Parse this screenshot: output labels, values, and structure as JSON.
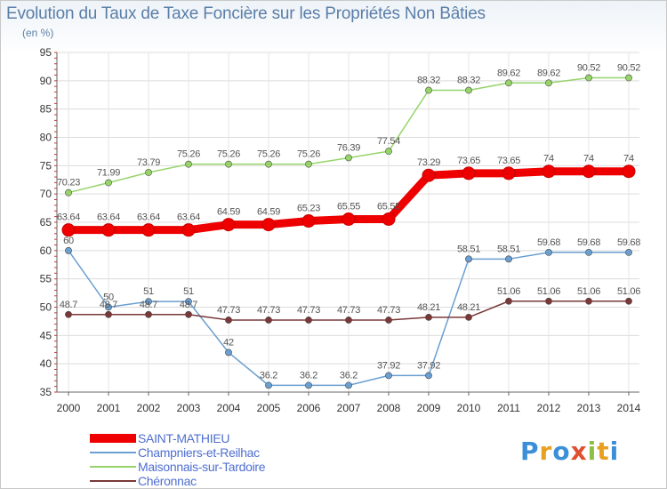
{
  "chart_data": {
    "type": "line",
    "title": "Evolution du Taux de Taxe Foncière sur les Propriétés Non Bâties",
    "subtitle": "(en %)",
    "x": [
      "2000",
      "2001",
      "2002",
      "2003",
      "2004",
      "2005",
      "2006",
      "2007",
      "2008",
      "2009",
      "2010",
      "2011",
      "2012",
      "2013",
      "2014"
    ],
    "ylim": [
      35,
      95
    ],
    "yticks": [
      35,
      40,
      45,
      50,
      55,
      60,
      65,
      70,
      75,
      80,
      85,
      90,
      95
    ],
    "grid": true,
    "series": [
      {
        "name": "SAINT-MATHIEU",
        "color": "#ee0000",
        "values": [
          63.64,
          63.64,
          63.64,
          63.64,
          64.59,
          64.59,
          65.23,
          65.55,
          65.55,
          73.29,
          73.65,
          73.65,
          74,
          74,
          74
        ],
        "labels": [
          "63.64",
          "63.64",
          "63.64",
          "63.64",
          "64.59",
          "64.59",
          "65.23",
          "65.55",
          "65.55",
          "73.29",
          "73.65",
          "73.65",
          "74",
          "74",
          "74"
        ]
      },
      {
        "name": "Champniers-et-Reilhac",
        "color": "#6a9fd0",
        "values": [
          60,
          50,
          51,
          51,
          42,
          36.2,
          36.2,
          36.2,
          37.92,
          37.92,
          58.51,
          58.51,
          59.68,
          59.68,
          59.68
        ],
        "labels": [
          "60",
          "50",
          "51",
          "51",
          "42",
          "36.2",
          "36.2",
          "36.2",
          "37.92",
          "37.92",
          "58.51",
          "58.51",
          "59.68",
          "59.68",
          "59.68"
        ]
      },
      {
        "name": "Maisonnais-sur-Tardoire",
        "color": "#96d46a",
        "values": [
          70.23,
          71.99,
          73.79,
          75.26,
          75.26,
          75.26,
          75.26,
          76.39,
          77.54,
          88.32,
          88.32,
          89.62,
          89.62,
          90.52,
          90.52
        ],
        "labels": [
          "70.23",
          "71.99",
          "73.79",
          "75.26",
          "75.26",
          "75.26",
          "75.26",
          "76.39",
          "77.54",
          "88.32",
          "88.32",
          "89.62",
          "89.62",
          "90.52",
          "90.52"
        ]
      },
      {
        "name": "Chéronnac",
        "color": "#7a3838",
        "values": [
          48.7,
          48.7,
          48.7,
          48.7,
          47.73,
          47.73,
          47.73,
          47.73,
          47.73,
          48.21,
          48.21,
          51.06,
          51.06,
          51.06,
          51.06
        ],
        "labels": [
          "48.7",
          "48.7",
          "48.7",
          "48.7",
          "47.73",
          "47.73",
          "47.73",
          "47.73",
          "47.73",
          "48.21",
          "48.21",
          "51.06",
          "51.06",
          "51.06",
          "51.06"
        ]
      }
    ]
  },
  "legend": {
    "items": [
      "SAINT-MATHIEU",
      "Champniers-et-Reilhac",
      "Maisonnais-sur-Tardoire",
      "Chéronnac"
    ]
  },
  "logo": {
    "letters": [
      "P",
      "r",
      "o",
      "x",
      "i",
      "t",
      "i"
    ],
    "colors": [
      "#3a8fd8",
      "#e8a020",
      "#3a8fd8",
      "#e05030",
      "#8cc040",
      "#e8a020",
      "#3a8fd8"
    ]
  }
}
